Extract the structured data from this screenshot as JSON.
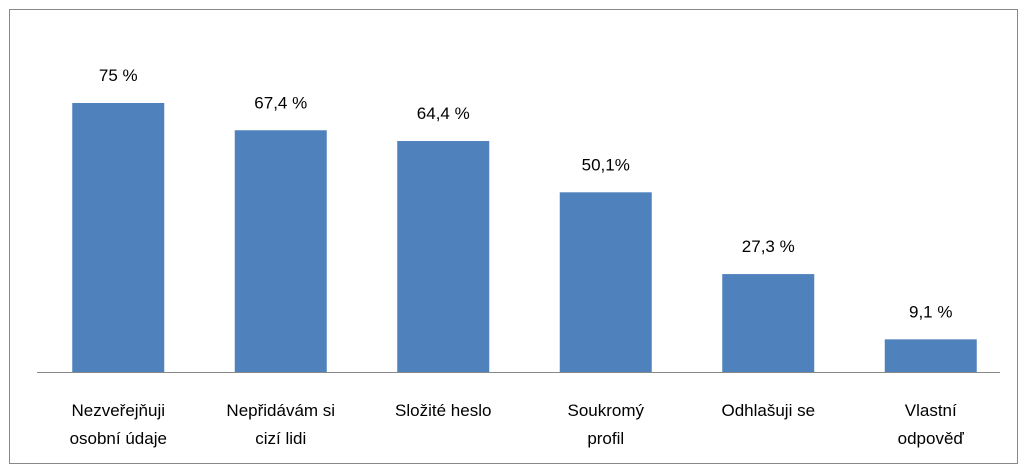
{
  "chart_data": {
    "type": "bar",
    "categories": [
      "Nezveřejňuji\nosobní údaje",
      "Nepřidávám si\ncizí lidi",
      "Složité heslo",
      "Soukromý\nprofil",
      "Odhlašuji se",
      "Vlastní\nodpověď"
    ],
    "values": [
      75,
      67.4,
      64.4,
      50.1,
      27.3,
      9.1
    ],
    "value_labels": [
      "75 %",
      "67,4 %",
      "64,4 %",
      "50,1%",
      "27,3 %",
      "9,1 %"
    ],
    "color": "#4f81bd"
  }
}
